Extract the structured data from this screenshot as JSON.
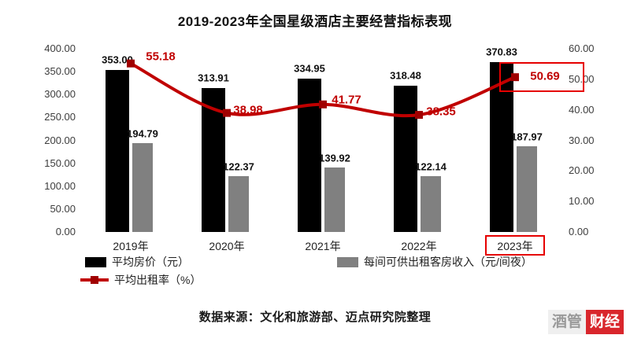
{
  "title": "2019-2023年全国星级酒店主要经营指标表现",
  "source": "数据来源：文化和旅游部、迈点研究院整理",
  "watermark": {
    "left": "酒管",
    "right": "财经"
  },
  "colors": {
    "bar_primary": "#000000",
    "bar_secondary": "#808080",
    "line": "#c00000",
    "highlight_box": "#e60000"
  },
  "chart_data": {
    "type": "bar",
    "subtype": "bar+line combo, dual axis",
    "categories": [
      "2019年",
      "2020年",
      "2021年",
      "2022年",
      "2023年"
    ],
    "series": [
      {
        "name": "平均房价（元）",
        "type": "bar",
        "axis": "left",
        "color": "#000000",
        "values": [
          353.0,
          313.91,
          334.95,
          318.48,
          370.83
        ]
      },
      {
        "name": "每间可供出租客房收入（元/间夜）",
        "type": "bar",
        "axis": "left",
        "color": "#808080",
        "values": [
          194.79,
          122.37,
          139.92,
          122.14,
          187.97
        ]
      },
      {
        "name": "平均出租率（%）",
        "type": "line",
        "axis": "right",
        "color": "#c00000",
        "values": [
          55.18,
          38.98,
          41.77,
          38.35,
          50.69
        ]
      }
    ],
    "left_axis": {
      "min": 0,
      "max": 400,
      "step": 50,
      "ticks": [
        "400.00",
        "350.00",
        "300.00",
        "250.00",
        "200.00",
        "150.00",
        "100.00",
        "50.00",
        "0.00"
      ]
    },
    "right_axis": {
      "min": 0,
      "max": 60,
      "step": 10,
      "ticks": [
        "60.00",
        "50.00",
        "40.00",
        "30.00",
        "20.00",
        "10.00",
        "0.00"
      ]
    },
    "highlight": {
      "category": "2023年",
      "value": "50.69"
    },
    "grid": "off",
    "legend_position": "bottom"
  }
}
